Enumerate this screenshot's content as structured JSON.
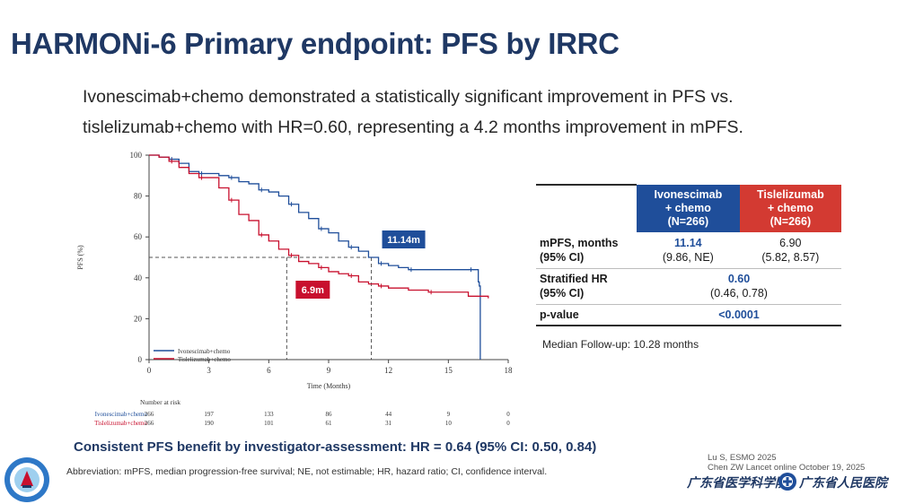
{
  "title": "HARMONi-6 Primary endpoint: PFS by IRRC",
  "subtitle": {
    "line1": "Ivonescimab+chemo demonstrated a statistically significant improvement in PFS vs.",
    "line2": "tislelizumab+chemo with HR=0.60, representing a 4.2 months improvement in mPFS."
  },
  "chart_data": {
    "type": "line",
    "title": "",
    "xlabel": "Time (Months)",
    "ylabel": "PFS (%)",
    "xlim": [
      0,
      18
    ],
    "ylim": [
      0,
      100
    ],
    "x_ticks": [
      "0",
      "3",
      "6",
      "9",
      "12",
      "15",
      "18"
    ],
    "y_ticks": [
      "0",
      "20",
      "40",
      "60",
      "80",
      "100"
    ],
    "colors": {
      "ivo": "#1f4e9a",
      "tis": "#c8102e"
    },
    "series": [
      {
        "name": "Ivonescimab+chemo",
        "x": [
          0,
          0.5,
          1.0,
          1.5,
          2.0,
          2.5,
          3.0,
          3.5,
          4.0,
          4.5,
          5.0,
          5.5,
          6.0,
          6.5,
          7.0,
          7.5,
          8.0,
          8.5,
          9.0,
          9.5,
          10.0,
          10.5,
          11.0,
          11.5,
          12.0,
          12.5,
          13.0,
          14.0,
          15.0,
          16.0,
          16.5,
          16.55,
          16.6
        ],
        "y": [
          100,
          99,
          98,
          96,
          92,
          91,
          91,
          90,
          89,
          87,
          86,
          83,
          82,
          80,
          76,
          72,
          69,
          64,
          62,
          58,
          55,
          53,
          50,
          47,
          46,
          45,
          44,
          44,
          44,
          44,
          38,
          36,
          0
        ]
      },
      {
        "name": "Tislelizumab+chemo",
        "x": [
          0,
          0.5,
          1.0,
          1.5,
          2.0,
          2.5,
          3.0,
          3.5,
          4.0,
          4.5,
          5.0,
          5.5,
          6.0,
          6.5,
          7.0,
          7.5,
          8.0,
          8.5,
          9.0,
          9.5,
          10.0,
          10.5,
          11.0,
          11.5,
          12.0,
          13.0,
          14.0,
          15.0,
          16.0,
          17.0
        ],
        "y": [
          100,
          99,
          97,
          94,
          91,
          89,
          89,
          84,
          78,
          71,
          68,
          61,
          58,
          54,
          51,
          48,
          47,
          45,
          43,
          42,
          41,
          38,
          37,
          36,
          35,
          34,
          33,
          33,
          31,
          30
        ]
      }
    ],
    "annotations": [
      {
        "label": "11.14m",
        "x": 11.14,
        "y": 50,
        "color": "#1f4e9a"
      },
      {
        "label": "6.9m",
        "x": 6.9,
        "y": 50,
        "color": "#c8102e"
      }
    ],
    "legend": [
      "Ivonescimab+chemo",
      "Tislelizumab+chemo"
    ],
    "legend_position": "bottom-left",
    "number_at_risk": {
      "label": "Number at risk",
      "rows": [
        {
          "name": "Ivonescimab+chemo",
          "values": [
            "266",
            "197",
            "133",
            "86",
            "44",
            "9",
            "0"
          ]
        },
        {
          "name": "Tislelizumab+chemo",
          "values": [
            "266",
            "190",
            "101",
            "61",
            "31",
            "10",
            "0"
          ]
        }
      ]
    }
  },
  "stats_table": {
    "header_ivo": [
      "Ivonescimab",
      "+ chemo",
      "(N=266)"
    ],
    "header_tis": [
      "Tislelizumab",
      "+ chemo",
      "(N=266)"
    ],
    "mpfs_label": [
      "mPFS, months",
      "(95% CI)"
    ],
    "mpfs_ivo": [
      "11.14",
      "(9.86, NE)"
    ],
    "mpfs_tis": [
      "6.90",
      "(5.82, 8.57)"
    ],
    "hr_label": [
      "Stratified HR",
      "(95% CI)"
    ],
    "hr_value": [
      "0.60",
      "(0.46, 0.78)"
    ],
    "p_label": "p-value",
    "p_value": "<0.0001"
  },
  "followup": "Median Follow-up: 10.28 months",
  "consistent": "Consistent PFS benefit by investigator-assessment: HR = 0.64 (95% CI: 0.50, 0.84)",
  "abbreviation": "Abbreviation: mPFS, median progression-free survival; NE, not estimable; HR, hazard ratio; CI, confidence interval.",
  "references": [
    "Lu S, ESMO 2025",
    "Chen ZW Lancet online October 19, 2025"
  ],
  "institutions": [
    "广东省医学科学院",
    "广东省人民医院"
  ]
}
